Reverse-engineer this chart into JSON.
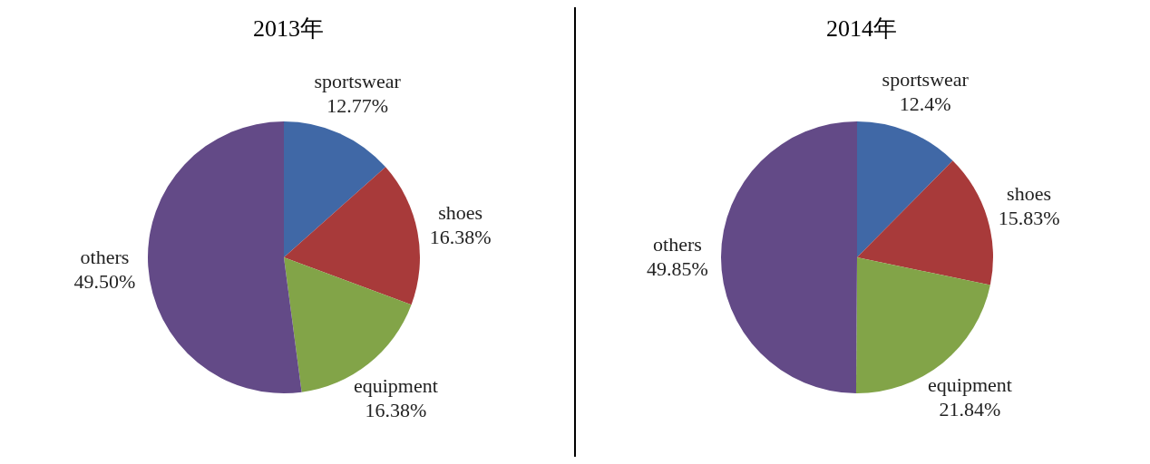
{
  "chart_data": [
    {
      "type": "pie",
      "title": "2013年",
      "categories": [
        "sportswear",
        "shoes",
        "equipment",
        "others"
      ],
      "values": [
        12.77,
        16.38,
        16.38,
        49.5
      ],
      "value_labels": [
        "12.77%",
        "16.38%",
        "16.38%",
        "49.50%"
      ],
      "colors": [
        "#4068a6",
        "#a83a3a",
        "#82a448",
        "#634a87"
      ]
    },
    {
      "type": "pie",
      "title": "2014年",
      "categories": [
        "sportswear",
        "shoes",
        "equipment",
        "others"
      ],
      "values": [
        12.4,
        15.83,
        21.84,
        49.85
      ],
      "value_labels": [
        "12.4%",
        "15.83%",
        "21.84%",
        "49.85%"
      ],
      "colors": [
        "#4068a6",
        "#a83a3a",
        "#82a448",
        "#634a87"
      ]
    }
  ]
}
